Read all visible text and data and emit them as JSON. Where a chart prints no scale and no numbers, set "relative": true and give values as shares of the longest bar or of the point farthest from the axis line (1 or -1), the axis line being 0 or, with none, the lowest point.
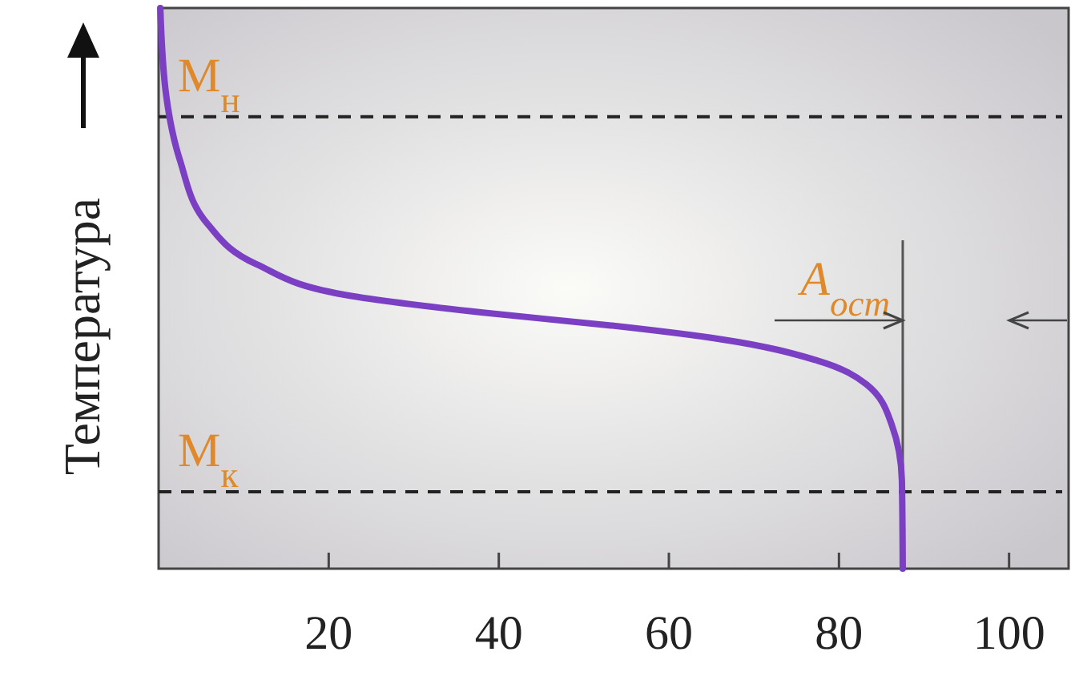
{
  "chart_data": {
    "type": "line",
    "ylabel": "Температура",
    "relative": true,
    "xlim": [
      0,
      107
    ],
    "xticks": [
      20,
      40,
      60,
      80,
      100
    ],
    "tick_labels": "x",
    "grid": false,
    "marker": "none",
    "line_style": "solid",
    "x": [
      0.2,
      0.9,
      2.5,
      5.8,
      11.5,
      22.8,
      37.9,
      53,
      66.2,
      77.5,
      83.2,
      86.2,
      87.4,
      87.5
    ],
    "series": [
      {
        "color": "#7b3fc4",
        "values": [
          1.0,
          0.843,
          0.729,
          0.614,
          0.543,
          0.486,
          0.457,
          0.434,
          0.409,
          0.371,
          0.329,
          0.257,
          0.157,
          0.0
        ]
      }
    ],
    "ref_lines": [
      {
        "axis": "y",
        "value": 0.806,
        "label": "M$_{н}$",
        "color": "#222222",
        "line_style": "dashed"
      },
      {
        "axis": "y",
        "value": 0.137,
        "label": "M$_{к}$",
        "color": "#222222",
        "line_style": "dashed"
      },
      {
        "axis": "x",
        "value": 87.5,
        "color": "#555555",
        "line_style": "solid"
      }
    ],
    "annotations": [
      "A$_{ост}$"
    ]
  }
}
